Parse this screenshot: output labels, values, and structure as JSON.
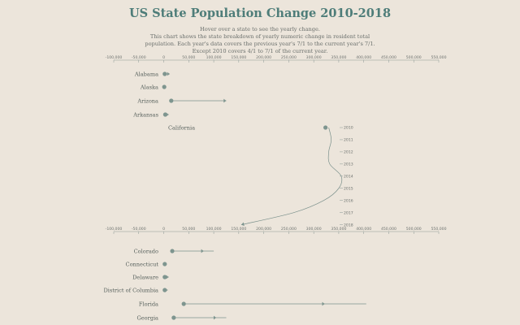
{
  "chart_data": {
    "type": "arrow-dot",
    "title": "US State Population Change 2010-2018",
    "subtitle": [
      "Hover over a state to see the yearly change.",
      "This chart shows the state breakdown of yearly numeric change in resident total",
      "population. Each year's data covers the previous year's 7/1 to the current year's 7/1.",
      "Except 2010 covers 4/1 to 7/1 of the current year."
    ],
    "xlim": [
      -100000,
      550000
    ],
    "x_ticks": [
      -100000,
      -50000,
      0,
      50000,
      100000,
      150000,
      200000,
      250000,
      300000,
      350000,
      400000,
      450000,
      500000,
      550000
    ],
    "x_tick_labels": [
      "-100,000",
      "-50,000",
      "0",
      "50,000",
      "100,000",
      "150,000",
      "200,000",
      "250,000",
      "300,000",
      "350,000",
      "400,000",
      "450,000",
      "500,000",
      "550,000"
    ],
    "years": [
      "2010",
      "2011",
      "2012",
      "2013",
      "2014",
      "2015",
      "2016",
      "2017",
      "2018"
    ],
    "states_before": [
      {
        "name": "Alabama",
        "start": 2000,
        "end": 12000
      },
      {
        "name": "Alaska",
        "start": 1000,
        "end": -2000
      },
      {
        "name": "Arizona",
        "start": 15000,
        "end": 125000
      },
      {
        "name": "Arkansas",
        "start": 3000,
        "end": 10000
      }
    ],
    "expanded_state": {
      "name": "California",
      "yearly": [
        330000,
        335000,
        330000,
        332000,
        355000,
        350000,
        320000,
        260000,
        155000
      ]
    },
    "states_after": [
      {
        "name": "Colorado",
        "start": 17000,
        "end": 80000,
        "max": 100000
      },
      {
        "name": "Connecticut",
        "start": 2000,
        "end": 6000
      },
      {
        "name": "Delaware",
        "start": 2000,
        "end": 10000
      },
      {
        "name": "District of Columbia",
        "start": 2000,
        "end": 8000
      },
      {
        "name": "Florida",
        "start": 40000,
        "end": 322000,
        "max": 405000
      },
      {
        "name": "Georgia",
        "start": 20000,
        "end": 105000,
        "max": 125000
      }
    ]
  }
}
